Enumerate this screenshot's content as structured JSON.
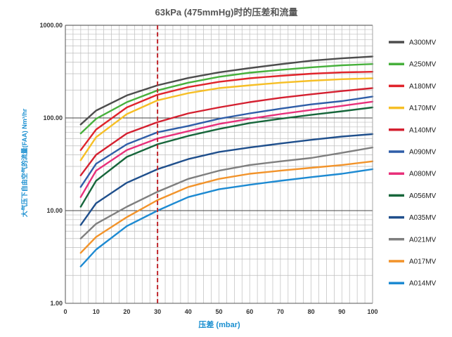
{
  "chart_data": {
    "type": "line",
    "title": "63kPa (475mmHg)时的压差和流量",
    "xlabel": "压差 (mbar)",
    "ylabel": "大气压下自由空气的流量(FAA) Nm³/hr",
    "xlim": [
      0,
      100
    ],
    "ylim": [
      1,
      1000
    ],
    "yscale": "log",
    "x_ticks": [
      0,
      10,
      20,
      30,
      40,
      50,
      60,
      70,
      80,
      90,
      100
    ],
    "y_ticks": [
      1,
      10,
      100,
      1000
    ],
    "y_tick_labels": [
      "1.00",
      "10.00",
      "100.00",
      "1000.00"
    ],
    "reference_line": {
      "x": 30,
      "color": "#c0262c",
      "style": "dashed"
    },
    "x": [
      5,
      10,
      20,
      30,
      40,
      50,
      60,
      70,
      80,
      90,
      100
    ],
    "series": [
      {
        "name": "A300MV",
        "color": "#4d4d4d",
        "values": [
          85,
          120,
          175,
          225,
          270,
          310,
          345,
          380,
          415,
          440,
          460
        ]
      },
      {
        "name": "A250MV",
        "color": "#47b03c",
        "values": [
          68,
          98,
          148,
          198,
          240,
          278,
          308,
          330,
          352,
          370,
          382
        ]
      },
      {
        "name": "A180MV",
        "color": "#e0242b",
        "values": [
          45,
          75,
          130,
          178,
          215,
          245,
          268,
          285,
          300,
          310,
          315
        ]
      },
      {
        "name": "A170MV",
        "color": "#f6bf26",
        "values": [
          35,
          62,
          110,
          155,
          185,
          210,
          225,
          240,
          252,
          262,
          268
        ]
      },
      {
        "name": "A140MV",
        "color": "#d42030",
        "values": [
          24,
          40,
          68,
          90,
          112,
          130,
          148,
          165,
          180,
          195,
          210
        ]
      },
      {
        "name": "A090MV",
        "color": "#2f5ea8",
        "values": [
          18,
          32,
          52,
          70,
          82,
          98,
          112,
          126,
          140,
          152,
          170
        ]
      },
      {
        "name": "A080MV",
        "color": "#e8307a",
        "values": [
          14,
          27,
          45,
          60,
          72,
          86,
          98,
          110,
          122,
          135,
          150
        ]
      },
      {
        "name": "A056MV",
        "color": "#17663b",
        "values": [
          11,
          21,
          38,
          52,
          64,
          76,
          88,
          98,
          108,
          118,
          130
        ]
      },
      {
        "name": "A035MV",
        "color": "#1f4f8c",
        "values": [
          7,
          12,
          20,
          28,
          36,
          43,
          48,
          53,
          58,
          63,
          67
        ]
      },
      {
        "name": "A021MV",
        "color": "#7f7f7f",
        "values": [
          5,
          7.2,
          11,
          16,
          22,
          27,
          31,
          34,
          37,
          42,
          48
        ]
      },
      {
        "name": "A017MV",
        "color": "#f2932a",
        "values": [
          3.5,
          5.2,
          8.5,
          13,
          18,
          22,
          25,
          27,
          29,
          31,
          34
        ]
      },
      {
        "name": "A014MV",
        "color": "#1d8ad2",
        "values": [
          2.5,
          3.8,
          6.8,
          10,
          14,
          17,
          19,
          21,
          23,
          25,
          28
        ]
      }
    ]
  }
}
